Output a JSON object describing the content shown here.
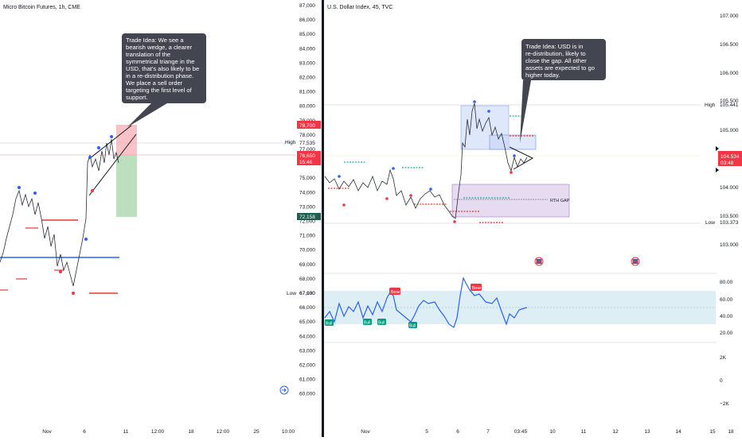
{
  "left_panel": {
    "title": "Micro Bitcoin Futures, 1h, CME",
    "price_axis": [
      "87,000",
      "86,000",
      "85,000",
      "84,000",
      "83,000",
      "82,000",
      "81,000",
      "80,000",
      "79,000",
      "78,000",
      "77,000",
      "76,000",
      "75,000",
      "74,000",
      "73,000",
      "72,000",
      "71,000",
      "70,000",
      "69,000",
      "68,000",
      "67,000",
      "66,000",
      "65,000",
      "64,000",
      "63,000",
      "62,000",
      "61,000",
      "60,000"
    ],
    "time_axis": [
      "Nov",
      "6",
      "11",
      "12:00",
      "18",
      "12:00",
      "25",
      "10:00"
    ],
    "labels": {
      "high_text": "High",
      "high_value": "77,535",
      "low_text": "Low",
      "low_value": "67,130",
      "target_price": "78,700",
      "current_price": "76,650",
      "countdown": "15:46",
      "stop_price": "72,158"
    },
    "annotation": [
      "Trade Idea: We see a",
      "bearish wedge, a clearer",
      "translation of the",
      "symmetrical triange in the",
      "USD, that's also likely to be",
      "in a re-distribution phase.",
      "We place a sell order",
      "targeting the first level of",
      "support."
    ]
  },
  "right_panel": {
    "title": "U.S. Dollar Index, 45, TVC",
    "price_axis": [
      "107.000",
      "106.500",
      "106.000",
      "105.500",
      "105.000",
      "104.500",
      "104.000",
      "103.500",
      "103.000"
    ],
    "indicator_axis": [
      "80.00",
      "60.00",
      "40.00",
      "20.00"
    ],
    "volume_axis": [
      "2K",
      "0",
      "−2K"
    ],
    "time_axis": [
      "Nov",
      "5",
      "6",
      "7",
      "03:45",
      "10",
      "11",
      "12",
      "13",
      "14",
      "15",
      "18"
    ],
    "labels": {
      "high_text": "High",
      "high_value": "105.441",
      "low_text": "Low",
      "low_value": "103.373",
      "current_price": "104.534",
      "countdown": "03:48",
      "gap_label": "RTH GAP",
      "bear1": "Bear",
      "bear2": "Bear",
      "bull": "Bull"
    },
    "annotation": [
      "Trade Idea: USD is in",
      "re-distribution, likely to",
      "close the gap. All other",
      "assets are expected to go",
      "higher today."
    ]
  },
  "colors": {
    "up": "#2962ff",
    "down": "#f23645",
    "bull": "#089981",
    "note_bg": "#434651",
    "rsi": "#2962ff"
  }
}
